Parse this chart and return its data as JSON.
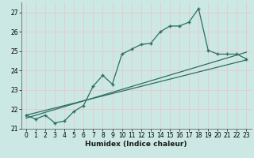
{
  "xlabel": "Humidex (Indice chaleur)",
  "background_color": "#cce8e4",
  "grid_color": "#e8c8c8",
  "line_color": "#2a6e62",
  "xlim": [
    -0.5,
    23.5
  ],
  "ylim": [
    21.0,
    27.5
  ],
  "yticks": [
    21,
    22,
    23,
    24,
    25,
    26,
    27
  ],
  "xticks": [
    0,
    1,
    2,
    3,
    4,
    5,
    6,
    7,
    8,
    9,
    10,
    11,
    12,
    13,
    14,
    15,
    16,
    17,
    18,
    19,
    20,
    21,
    22,
    23
  ],
  "line1_x": [
    0,
    1,
    2,
    3,
    4,
    5,
    6,
    7,
    8,
    9,
    10,
    11,
    12,
    13,
    14,
    15,
    16,
    17,
    18,
    19,
    20,
    21,
    22,
    23
  ],
  "line1_y": [
    21.7,
    21.5,
    21.7,
    21.3,
    21.4,
    21.9,
    22.2,
    23.2,
    23.75,
    23.3,
    24.85,
    25.1,
    25.35,
    25.4,
    26.0,
    26.3,
    26.3,
    26.5,
    27.2,
    25.05,
    24.85,
    24.85,
    24.85,
    24.6
  ],
  "line2_x": [
    0,
    23
  ],
  "line2_y": [
    21.7,
    24.55
  ],
  "line3_x": [
    0,
    23
  ],
  "line3_y": [
    21.55,
    24.95
  ]
}
